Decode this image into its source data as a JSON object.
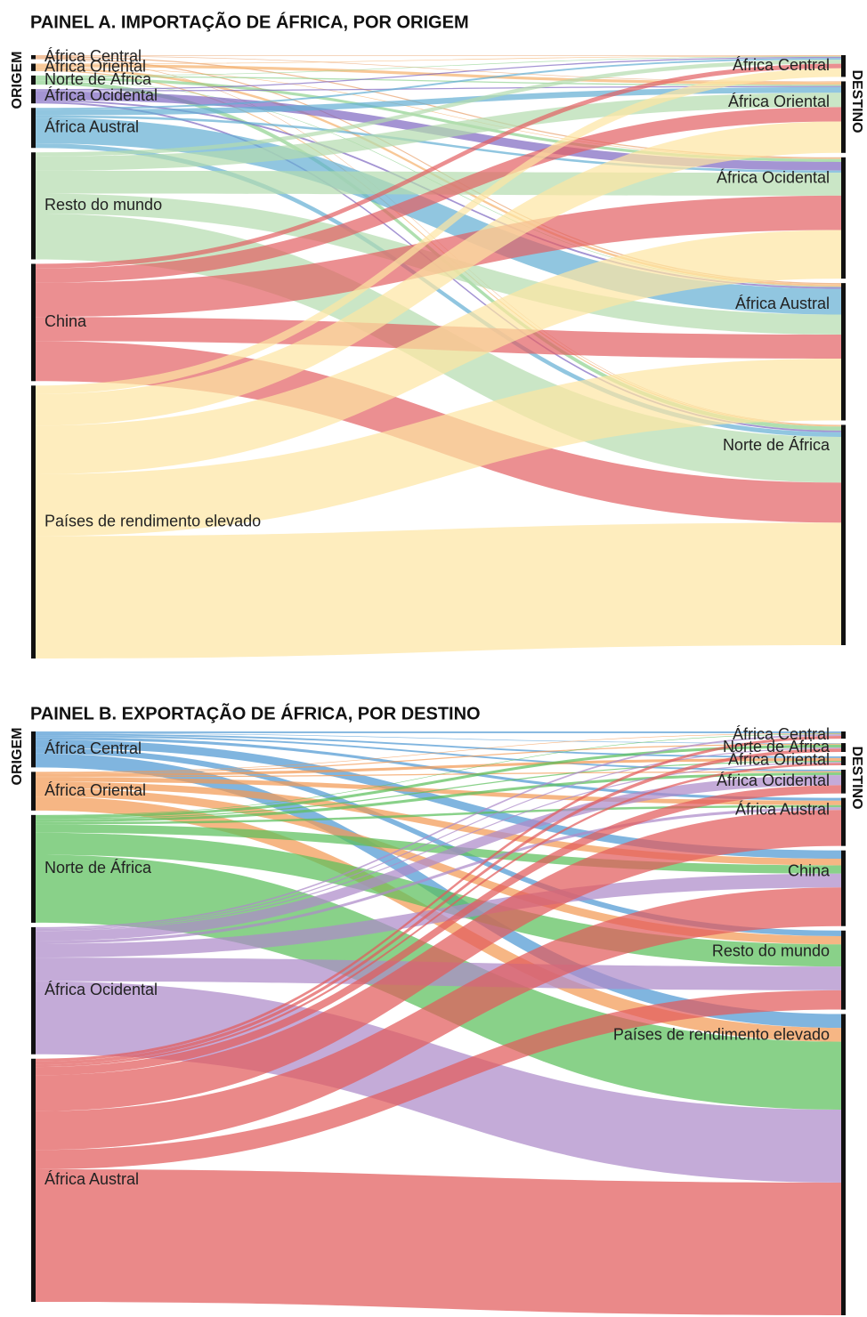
{
  "chart_data": [
    {
      "type": "sankey",
      "title": "PAINEL A. IMPORTAÇÃO DE ÁFRICA, POR ORIGEM",
      "source_label": "ORIGEM",
      "target_label": "DESTINO",
      "sources": [
        {
          "name": "África Central",
          "color": "#e8a06a"
        },
        {
          "name": "África Oriental",
          "color": "#f5b06b"
        },
        {
          "name": "Norte de África",
          "color": "#8fd18f"
        },
        {
          "name": "África Ocidental",
          "color": "#7d67c0"
        },
        {
          "name": "África Austral",
          "color": "#62aed3"
        },
        {
          "name": "Resto do mundo",
          "color": "#b3dcae"
        },
        {
          "name": "China",
          "color": "#e35f63"
        },
        {
          "name": "Países de rendimento elevado",
          "color": "#fde6a3"
        }
      ],
      "targets": [
        "África Central",
        "África Oriental",
        "África Ocidental",
        "África Austral",
        "Norte de África"
      ],
      "flows": [
        [
          0.1,
          0.1,
          0.2,
          0.2,
          0.1
        ],
        [
          0.1,
          0.5,
          0.1,
          0.4,
          0.2
        ],
        [
          0.1,
          0.2,
          0.5,
          0.1,
          0.7
        ],
        [
          0.2,
          0.2,
          1.5,
          0.3,
          0.3
        ],
        [
          0.3,
          1.0,
          0.4,
          4.5,
          0.8
        ],
        [
          0.7,
          2.5,
          4.0,
          3.5,
          8.0
        ],
        [
          0.8,
          2.5,
          6.0,
          4.2,
          7.0
        ],
        [
          1.5,
          5.5,
          8.5,
          10.8,
          21.4
        ]
      ]
    },
    {
      "type": "sankey",
      "title": "PAINEL B. EXPORTAÇÃO DE ÁFRICA, POR DESTINO",
      "source_label": "ORIGEM",
      "target_label": "DESTINO",
      "sources": [
        {
          "name": "África Central",
          "color": "#4f98d3"
        },
        {
          "name": "África Oriental",
          "color": "#f29a55"
        },
        {
          "name": "Norte de África",
          "color": "#5cbf5c"
        },
        {
          "name": "África Ocidental",
          "color": "#ad8bc9"
        },
        {
          "name": "África Austral",
          "color": "#e25c5c"
        }
      ],
      "targets": [
        "África Central",
        "Norte de África",
        "África Oriental",
        "África Ocidental",
        "África Austral",
        "China",
        "Resto do mundo",
        "Países de rendimento elevado"
      ],
      "flows": [
        [
          0.3,
          0.1,
          0.3,
          0.3,
          0.5,
          1.5,
          1.0,
          2.5
        ],
        [
          0.1,
          0.2,
          0.5,
          0.2,
          0.8,
          1.2,
          1.5,
          2.5
        ],
        [
          0.1,
          0.5,
          0.2,
          0.5,
          0.4,
          1.5,
          4.0,
          12.3
        ],
        [
          0.3,
          0.2,
          0.2,
          1.8,
          0.5,
          2.5,
          4.3,
          13.2
        ],
        [
          0.5,
          0.6,
          0.4,
          1.5,
          6.5,
          7.0,
          3.5,
          24.0
        ]
      ]
    }
  ]
}
